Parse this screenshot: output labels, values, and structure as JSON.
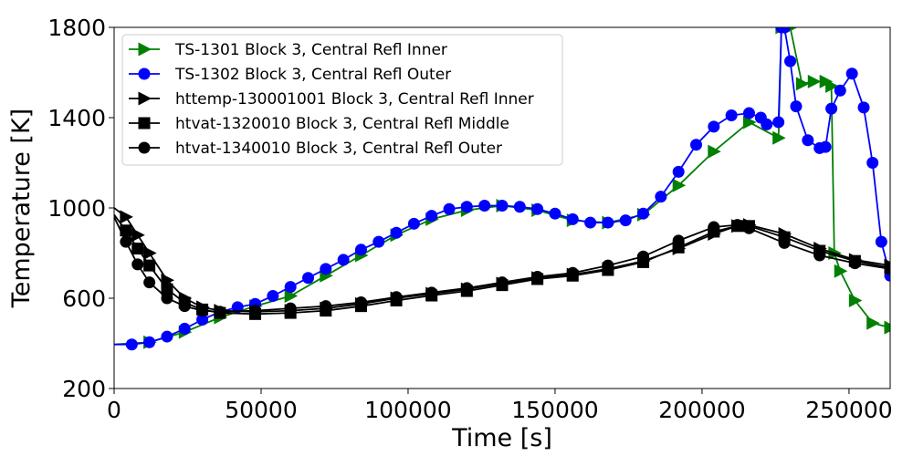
{
  "chart_data": {
    "type": "line",
    "title": "",
    "xlabel": "Time [s]",
    "ylabel": "Temperature [K]",
    "xlim": [
      0,
      264000
    ],
    "ylim": [
      200,
      1800
    ],
    "xticks": [
      0,
      50000,
      100000,
      150000,
      200000,
      250000
    ],
    "yticks": [
      200,
      600,
      1000,
      1400,
      1800
    ],
    "grid": false,
    "legend_position": "top-left",
    "series": [
      {
        "name": "TS-1301 Block 3, Central Refl Inner",
        "color": "#008000",
        "marker": "triangle-right",
        "x": [
          0,
          12000,
          24000,
          36000,
          48000,
          60000,
          72000,
          84000,
          96000,
          108000,
          120000,
          132000,
          144000,
          156000,
          168000,
          180000,
          192000,
          204000,
          216000,
          226000,
          227000,
          230000,
          234000,
          238000,
          242000,
          244000,
          245000,
          247000,
          252000,
          258000,
          264000
        ],
        "y": [
          395,
          405,
          450,
          515,
          565,
          610,
          700,
          790,
          880,
          950,
          990,
          1010,
          990,
          945,
          935,
          970,
          1100,
          1250,
          1380,
          1310,
          1800,
          1800,
          1550,
          1560,
          1560,
          1540,
          800,
          720,
          590,
          490,
          470
        ]
      },
      {
        "name": "TS-1302 Block 3, Central Refl Outer",
        "color": "#0000ff",
        "marker": "circle",
        "x": [
          0,
          6000,
          12000,
          18000,
          24000,
          30000,
          36000,
          42000,
          48000,
          54000,
          60000,
          66000,
          72000,
          78000,
          84000,
          90000,
          96000,
          102000,
          108000,
          114000,
          120000,
          126000,
          132000,
          138000,
          144000,
          150000,
          156000,
          162000,
          168000,
          174000,
          180000,
          186000,
          192000,
          198000,
          204000,
          210000,
          216000,
          220000,
          222000,
          226000,
          227000,
          228000,
          230000,
          232000,
          236000,
          240000,
          242000,
          244000,
          247000,
          251000,
          255000,
          258000,
          261000,
          264000
        ],
        "y": [
          395,
          395,
          405,
          430,
          465,
          505,
          540,
          560,
          575,
          610,
          650,
          690,
          730,
          770,
          815,
          850,
          890,
          930,
          965,
          995,
          1005,
          1010,
          1010,
          1005,
          995,
          975,
          950,
          935,
          935,
          945,
          975,
          1050,
          1160,
          1280,
          1360,
          1410,
          1420,
          1400,
          1370,
          1380,
          1800,
          1800,
          1650,
          1450,
          1300,
          1265,
          1270,
          1440,
          1520,
          1595,
          1445,
          1200,
          850,
          700
        ]
      },
      {
        "name": "httemp-130001001 Block 3, Central Refl Inner",
        "color": "#000000",
        "marker": "triangle-right",
        "x": [
          0,
          4000,
          8000,
          12000,
          18000,
          24000,
          30000,
          36000,
          48000,
          60000,
          72000,
          84000,
          96000,
          108000,
          120000,
          132000,
          144000,
          156000,
          168000,
          180000,
          192000,
          204000,
          212000,
          216000,
          228000,
          240000,
          252000,
          264000
        ],
        "y": [
          1000,
          960,
          880,
          800,
          680,
          600,
          560,
          545,
          540,
          545,
          555,
          575,
          600,
          620,
          640,
          665,
          690,
          705,
          730,
          765,
          820,
          885,
          920,
          925,
          885,
          820,
          770,
          745
        ]
      },
      {
        "name": "htvat-1320010 Block 3, Central Refl Middle",
        "color": "#000000",
        "marker": "square",
        "x": [
          0,
          4000,
          8000,
          12000,
          18000,
          24000,
          30000,
          36000,
          48000,
          60000,
          72000,
          84000,
          96000,
          108000,
          120000,
          132000,
          144000,
          156000,
          168000,
          180000,
          192000,
          204000,
          212000,
          216000,
          228000,
          240000,
          252000,
          264000
        ],
        "y": [
          970,
          900,
          820,
          745,
          640,
          580,
          550,
          535,
          530,
          535,
          545,
          565,
          590,
          612,
          632,
          658,
          685,
          700,
          725,
          760,
          825,
          895,
          920,
          920,
          870,
          810,
          765,
          735
        ]
      },
      {
        "name": "htvat-1340010 Block 3, Central Refl Outer",
        "color": "#000000",
        "marker": "circle",
        "x": [
          0,
          4000,
          8000,
          12000,
          18000,
          24000,
          30000,
          36000,
          48000,
          60000,
          72000,
          84000,
          96000,
          108000,
          120000,
          132000,
          144000,
          156000,
          168000,
          180000,
          192000,
          204000,
          212000,
          216000,
          228000,
          240000,
          252000,
          264000
        ],
        "y": [
          960,
          850,
          750,
          670,
          600,
          565,
          545,
          540,
          545,
          555,
          565,
          582,
          605,
          625,
          645,
          670,
          695,
          712,
          745,
          785,
          855,
          915,
          925,
          910,
          845,
          790,
          755,
          730
        ]
      }
    ]
  }
}
